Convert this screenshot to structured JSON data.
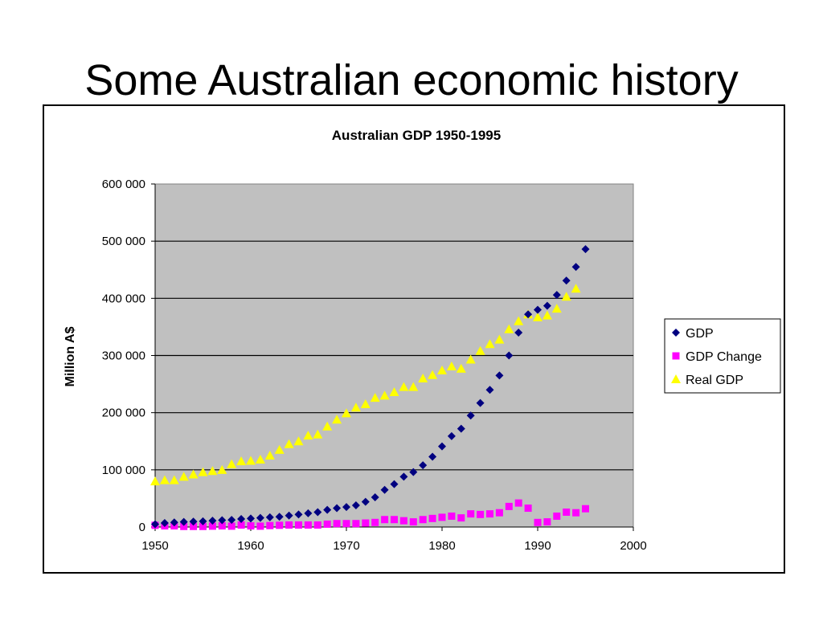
{
  "slide": {
    "title": "Some Australian economic history"
  },
  "chart_data": {
    "type": "scatter",
    "title": "Australian GDP 1950-1995",
    "xlabel": "",
    "ylabel": "Million A$",
    "xlim": [
      1950,
      2000
    ],
    "ylim": [
      0,
      600000
    ],
    "x_ticks": [
      1950,
      1960,
      1970,
      1980,
      1990,
      2000
    ],
    "y_ticks": [
      {
        "value": 0,
        "label": "0"
      },
      {
        "value": 100000,
        "label": "100 000"
      },
      {
        "value": 200000,
        "label": "200 000"
      },
      {
        "value": 300000,
        "label": "300 000"
      },
      {
        "value": 400000,
        "label": "400 000"
      },
      {
        "value": 500000,
        "label": "500 000"
      },
      {
        "value": 600000,
        "label": "600 000"
      }
    ],
    "grid": "horizontal",
    "plot_background": "#c0c0c0",
    "legend_position": "right",
    "x": [
      1950,
      1951,
      1952,
      1953,
      1954,
      1955,
      1956,
      1957,
      1958,
      1959,
      1960,
      1961,
      1962,
      1963,
      1964,
      1965,
      1966,
      1967,
      1968,
      1969,
      1970,
      1971,
      1972,
      1973,
      1974,
      1975,
      1976,
      1977,
      1978,
      1979,
      1980,
      1981,
      1982,
      1983,
      1984,
      1985,
      1986,
      1987,
      1988,
      1989,
      1990,
      1991,
      1992,
      1993,
      1994,
      1995
    ],
    "series": [
      {
        "name": "GDP",
        "marker": "diamond",
        "color": "#000080",
        "values": [
          5000,
          7000,
          8000,
          9000,
          9500,
          10000,
          11000,
          12000,
          12500,
          14000,
          15000,
          16000,
          17000,
          18000,
          20000,
          22000,
          24000,
          26000,
          30000,
          33000,
          35000,
          38000,
          44000,
          52000,
          65000,
          75000,
          88000,
          96000,
          108000,
          123000,
          141000,
          159000,
          172000,
          195000,
          217000,
          240000,
          265000,
          300000,
          340000,
          372000,
          380000,
          387000,
          406000,
          431000,
          455000,
          486000
        ]
      },
      {
        "name": "GDP Change",
        "marker": "square",
        "color": "#ff00ff",
        "values": [
          3000,
          2000,
          2000,
          1000,
          1000,
          1000,
          1500,
          2000,
          1500,
          3500,
          2000,
          1500,
          2500,
          3000,
          3500,
          3500,
          3500,
          3500,
          5000,
          6000,
          6000,
          6000,
          7000,
          8000,
          13000,
          13000,
          11000,
          9000,
          13000,
          15000,
          17000,
          19000,
          16000,
          23000,
          22000,
          23000,
          25000,
          36000,
          42000,
          33000,
          8000,
          9000,
          19000,
          26000,
          25000,
          32000
        ]
      },
      {
        "name": "Real GDP",
        "marker": "triangle",
        "color": "#ffff00",
        "values": [
          80000,
          82000,
          82000,
          88000,
          92000,
          96000,
          98000,
          100000,
          110000,
          115000,
          116000,
          118000,
          125000,
          135000,
          145000,
          150000,
          160000,
          162000,
          176000,
          188000,
          199000,
          209000,
          215000,
          226000,
          230000,
          236000,
          245000,
          245000,
          260000,
          266000,
          274000,
          281000,
          277000,
          293000,
          308000,
          320000,
          328000,
          346000,
          360000,
          372000,
          367000,
          370000,
          382000,
          403000,
          417000,
          null
        ]
      }
    ]
  }
}
